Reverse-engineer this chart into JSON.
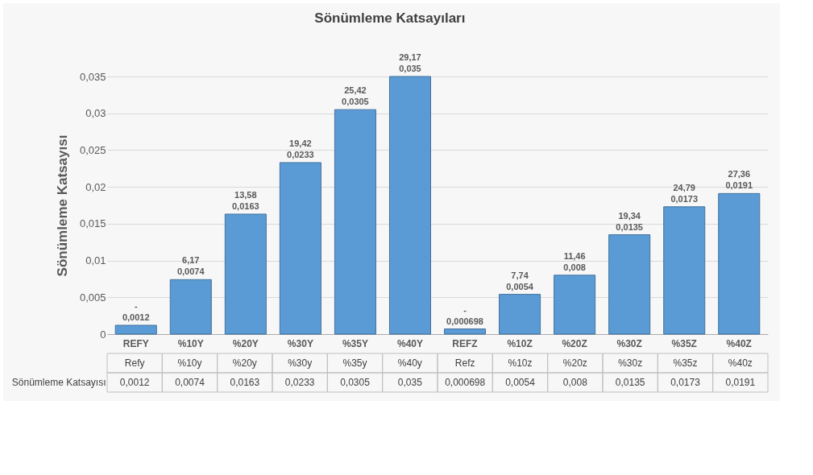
{
  "chart_data": {
    "type": "bar",
    "title": "Sönümleme Katsayıları",
    "ylabel": "Sönümleme Katsayısı",
    "categories": [
      "REFY",
      "%10Y",
      "%20Y",
      "%30Y",
      "%35Y",
      "%40Y",
      "REFZ",
      "%10Z",
      "%20Z",
      "%30Z",
      "%35Z",
      "%40Z"
    ],
    "values": [
      0.0012,
      0.0074,
      0.0163,
      0.0233,
      0.0305,
      0.035,
      0.000698,
      0.0054,
      0.008,
      0.0135,
      0.0173,
      0.0191
    ],
    "value_labels": [
      "0,0012",
      "0,0074",
      "0,0163",
      "0,0233",
      "0,0305",
      "0,035",
      "0,000698",
      "0,0054",
      "0,008",
      "0,0135",
      "0,0173",
      "0,0191"
    ],
    "annotations": [
      "Refy",
      "%10y",
      "%20y",
      "%30y",
      "%35y",
      "%40y",
      "Refz",
      "%10z",
      "%20z",
      "%30z",
      "%35z",
      "%40z",
      {
        "text": "-",
        "x": "REFY",
        "y": 0.0012
      },
      {
        "text": "6,17",
        "x": "%10Y",
        "y": 0.0074
      },
      {
        "text": "13,58",
        "x": "%20Y",
        "y": 0.0163
      },
      {
        "text": "19,42",
        "x": "%30Y",
        "y": 0.0233
      },
      {
        "text": "25,42",
        "x": "%35Y",
        "y": 0.0305
      },
      {
        "text": "29,17",
        "x": "%40Y",
        "y": 0.035
      },
      {
        "text": "-",
        "x": "REFZ",
        "y": 0.000698
      },
      {
        "text": "7,74",
        "x": "%10Z",
        "y": 0.0054
      },
      {
        "text": "11,46",
        "x": "%20Z",
        "y": 0.008
      },
      {
        "text": "19,34",
        "x": "%30Z",
        "y": 0.0135
      },
      {
        "text": "24,79",
        "x": "%35Z",
        "y": 0.0173
      },
      {
        "text": "27,36",
        "x": "%40Z",
        "y": 0.0191
      }
    ],
    "color": "#5b9bd5",
    "ylim": [
      0,
      0.035
    ],
    "yticks": [
      0,
      {
        "value": 0.005,
        "label": "0,005"
      },
      {
        "value": 0.01,
        "label": "0,01"
      },
      {
        "value": 0.015,
        "label": "0,015"
      },
      {
        "value": 0.02,
        "label": "0,02"
      },
      {
        "value": 0.025,
        "label": "0,025"
      },
      {
        "value": 0.03,
        "label": "0,03"
      },
      {
        "value": 0.035,
        "label": "0,035"
      }
    ],
    "grid": "y"
  }
}
